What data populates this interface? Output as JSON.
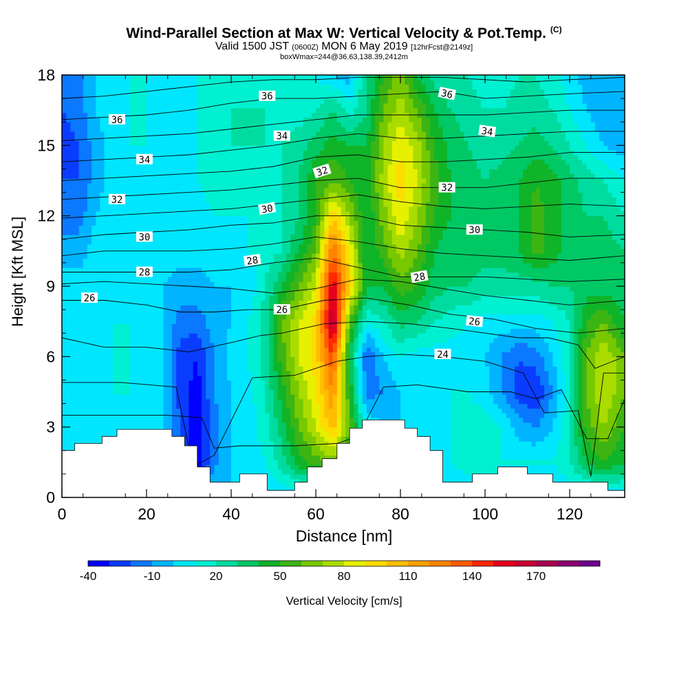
{
  "title": {
    "main": "Wind-Parallel Section at Max W: Vertical Velocity & Pot.Temp.",
    "tag": "(C)",
    "valid_pre": "Valid 1500 JST",
    "valid_utc": "(0600Z)",
    "valid_post": "MON 6 May 2019",
    "forecast": "[12hrFcst@2149z]",
    "box": "boxWmax=244@36.63,138.39,2412m"
  },
  "chart_data": {
    "type": "heatmap",
    "xlabel": "Distance [nm]",
    "ylabel": "Height [Kft MSL]",
    "xlim": [
      0,
      133
    ],
    "ylim": [
      0,
      18
    ],
    "x_ticks": [
      0,
      20,
      40,
      60,
      80,
      100,
      120
    ],
    "y_ticks": [
      0,
      3,
      6,
      9,
      12,
      15,
      18
    ],
    "colorbar": {
      "label": "Vertical Velocity [cm/s]",
      "tick_labels": [
        "-40",
        "-10",
        "20",
        "50",
        "80",
        "110",
        "140",
        "170"
      ],
      "levels": [
        -40,
        -30,
        -20,
        -10,
        0,
        10,
        20,
        30,
        40,
        50,
        60,
        70,
        80,
        90,
        100,
        110,
        120,
        130,
        140,
        150,
        160,
        170,
        180,
        190
      ],
      "colors": [
        "#0000ff",
        "#0a3cff",
        "#0a78ff",
        "#00b4ff",
        "#00e6ff",
        "#00f0d2",
        "#00dca0",
        "#00c864",
        "#10b428",
        "#3cb414",
        "#78c800",
        "#aadc00",
        "#e6f000",
        "#ffdc00",
        "#ffbe00",
        "#ffa000",
        "#ff8200",
        "#ff5a00",
        "#ff2800",
        "#e6001e",
        "#c80032",
        "#aa0050",
        "#8c006e",
        "#6e008c"
      ]
    },
    "w_grid": {
      "x": [
        0,
        4,
        8,
        12,
        16,
        20,
        24,
        28,
        32,
        36,
        40,
        44,
        48,
        52,
        56,
        60,
        64,
        68,
        72,
        76,
        80,
        84,
        88,
        92,
        96,
        100,
        104,
        108,
        112,
        116,
        120,
        124,
        128,
        133
      ],
      "y": [
        0,
        1.5,
        3,
        4.5,
        6,
        7.5,
        9,
        10.5,
        12,
        13.5,
        15,
        16.5,
        18
      ],
      "values": [
        [
          0,
          0,
          0,
          0,
          0,
          0,
          0,
          0,
          0,
          0,
          0,
          0,
          0,
          0,
          0,
          0,
          0,
          0,
          0,
          0,
          0,
          0,
          0,
          0,
          0,
          0,
          0,
          0,
          0,
          0,
          0,
          0,
          0,
          0
        ],
        [
          5,
          5,
          5,
          5,
          5,
          5,
          0,
          -15,
          -38,
          -12,
          0,
          5,
          10,
          25,
          45,
          55,
          65,
          40,
          0,
          0,
          0,
          0,
          5,
          10,
          15,
          20,
          10,
          10,
          10,
          10,
          20,
          40,
          50,
          40
        ],
        [
          8,
          5,
          5,
          5,
          5,
          5,
          0,
          -20,
          -38,
          -15,
          0,
          5,
          15,
          35,
          60,
          80,
          105,
          60,
          10,
          0,
          0,
          0,
          5,
          10,
          15,
          15,
          10,
          -5,
          -10,
          0,
          20,
          55,
          70,
          50
        ],
        [
          5,
          5,
          5,
          10,
          10,
          5,
          0,
          -25,
          -35,
          -10,
          0,
          5,
          20,
          45,
          70,
          90,
          120,
          50,
          -15,
          -10,
          0,
          0,
          5,
          10,
          10,
          5,
          -10,
          -25,
          -30,
          -10,
          15,
          60,
          80,
          60
        ],
        [
          5,
          5,
          10,
          10,
          10,
          5,
          0,
          -25,
          -30,
          -10,
          5,
          10,
          25,
          55,
          80,
          95,
          140,
          40,
          -20,
          0,
          10,
          5,
          5,
          5,
          5,
          0,
          -10,
          -20,
          -15,
          0,
          20,
          60,
          80,
          60
        ],
        [
          5,
          5,
          5,
          10,
          10,
          5,
          0,
          -15,
          -15,
          -5,
          0,
          10,
          25,
          60,
          80,
          95,
          175,
          60,
          10,
          20,
          35,
          30,
          20,
          15,
          10,
          5,
          5,
          5,
          5,
          10,
          20,
          50,
          60,
          40
        ],
        [
          5,
          5,
          5,
          5,
          5,
          5,
          0,
          -5,
          -5,
          0,
          0,
          0,
          20,
          40,
          60,
          80,
          160,
          100,
          40,
          40,
          55,
          50,
          35,
          30,
          30,
          25,
          25,
          25,
          25,
          30,
          30,
          35,
          35,
          30
        ],
        [
          -5,
          -5,
          5,
          5,
          5,
          5,
          5,
          5,
          5,
          5,
          5,
          10,
          15,
          20,
          40,
          60,
          130,
          90,
          40,
          55,
          75,
          60,
          40,
          30,
          35,
          35,
          35,
          40,
          55,
          45,
          35,
          35,
          35,
          30
        ],
        [
          -15,
          -15,
          0,
          5,
          5,
          5,
          5,
          5,
          5,
          10,
          10,
          10,
          15,
          20,
          30,
          50,
          100,
          70,
          40,
          65,
          90,
          70,
          50,
          40,
          35,
          35,
          35,
          40,
          55,
          45,
          35,
          30,
          30,
          20
        ],
        [
          -20,
          -20,
          -5,
          5,
          10,
          5,
          5,
          5,
          10,
          15,
          15,
          15,
          15,
          20,
          30,
          50,
          60,
          50,
          40,
          75,
          95,
          80,
          55,
          40,
          35,
          30,
          35,
          40,
          50,
          45,
          35,
          25,
          20,
          10
        ],
        [
          -25,
          -20,
          -5,
          5,
          10,
          10,
          5,
          5,
          10,
          15,
          20,
          20,
          20,
          20,
          25,
          35,
          45,
          40,
          40,
          70,
          90,
          75,
          50,
          35,
          30,
          25,
          25,
          30,
          35,
          30,
          20,
          10,
          0,
          -5
        ],
        [
          -20,
          -15,
          0,
          5,
          10,
          10,
          5,
          5,
          10,
          15,
          20,
          20,
          20,
          15,
          15,
          20,
          30,
          15,
          30,
          60,
          75,
          60,
          40,
          30,
          25,
          20,
          20,
          25,
          25,
          20,
          10,
          0,
          -10,
          -10
        ],
        [
          -20,
          -15,
          0,
          5,
          10,
          10,
          5,
          5,
          10,
          15,
          15,
          15,
          10,
          10,
          15,
          10,
          0,
          -5,
          30,
          50,
          65,
          40,
          25,
          20,
          20,
          15,
          15,
          20,
          20,
          15,
          5,
          -5,
          -10,
          -10
        ]
      ]
    },
    "terrain": {
      "x": [
        0,
        3,
        3,
        9.5,
        9.5,
        13,
        13,
        16.5,
        16.5,
        26,
        26,
        29,
        29,
        32,
        32,
        35,
        35,
        42,
        42,
        48.5,
        48.5,
        55,
        55,
        58,
        58,
        61.5,
        61.5,
        65,
        65,
        68,
        68,
        71,
        71,
        81,
        81,
        84,
        84,
        87,
        87,
        90,
        90,
        97,
        97,
        103,
        103,
        110,
        110,
        116,
        116,
        129,
        129,
        133
      ],
      "y": [
        2,
        2,
        2.3,
        2.3,
        2.6,
        2.6,
        2.9,
        2.9,
        2.9,
        2.9,
        2.6,
        2.6,
        2.2,
        2.2,
        1.3,
        1.3,
        0.65,
        0.65,
        1.0,
        1.0,
        0.3,
        0.3,
        0.65,
        0.65,
        1.3,
        1.3,
        1.65,
        1.65,
        2.3,
        2.3,
        2.95,
        2.95,
        3.3,
        3.3,
        2.95,
        2.95,
        2.6,
        2.6,
        2.0,
        2.0,
        0.65,
        0.65,
        1.0,
        1.0,
        1.3,
        1.3,
        1.0,
        1.0,
        0.65,
        0.65,
        0.3,
        0.3
      ]
    },
    "theta_lines": [
      {
        "level": 23,
        "x": [
          0,
          25,
          33,
          36,
          42,
          55,
          65,
          70,
          76,
          84,
          96,
          106,
          112,
          118,
          124,
          129,
          133
        ],
        "y": [
          3.5,
          3.5,
          3.4,
          2.1,
          2.2,
          2.2,
          2.3,
          2.6,
          4.7,
          4.8,
          4.5,
          4.5,
          4.2,
          4.6,
          2.5,
          2.5,
          4.2
        ]
      },
      {
        "level": 24,
        "x": [
          0,
          14,
          27,
          31,
          36,
          45,
          55,
          65,
          72,
          80,
          90,
          100,
          109,
          114,
          122,
          125,
          128,
          133
        ],
        "y": [
          4.9,
          4.9,
          4.7,
          1.3,
          1.8,
          5.1,
          5.2,
          5.8,
          6.0,
          6.1,
          6.0,
          5.8,
          5.3,
          3.6,
          3.7,
          0.9,
          5.3,
          5.3
        ]
      },
      {
        "level": 25,
        "x": [
          0,
          10,
          20,
          30,
          40,
          47,
          52,
          62,
          72,
          82,
          92,
          100,
          108,
          115,
          122,
          126,
          133
        ],
        "y": [
          6.8,
          6.4,
          6.4,
          6.2,
          6.6,
          6.9,
          7.0,
          7.4,
          7.5,
          7.4,
          7.2,
          7.0,
          6.8,
          6.8,
          6.5,
          5.5,
          6.0
        ]
      },
      {
        "level": 26,
        "x": [
          0,
          10,
          20,
          28,
          36,
          44,
          52,
          62,
          72,
          82,
          92,
          102,
          112,
          122,
          133
        ],
        "y": [
          8.4,
          8.4,
          8.2,
          7.9,
          7.9,
          8.0,
          8.0,
          8.4,
          8.5,
          8.2,
          7.8,
          7.6,
          7.2,
          7.0,
          7.2
        ]
      },
      {
        "level": 27,
        "x": [
          0,
          10,
          20,
          30,
          40,
          50,
          60,
          70,
          80,
          90,
          100,
          110,
          120,
          133
        ],
        "y": [
          9.1,
          9.2,
          9.1,
          9.0,
          8.9,
          8.7,
          8.9,
          9.3,
          9.2,
          8.9,
          8.6,
          8.4,
          8.2,
          8.4
        ]
      },
      {
        "level": 28,
        "x": [
          0,
          10,
          20,
          30,
          40,
          50,
          60,
          70,
          80,
          90,
          100,
          110,
          120,
          133
        ],
        "y": [
          9.6,
          9.6,
          9.6,
          9.6,
          9.7,
          10.0,
          10.2,
          9.8,
          9.4,
          9.4,
          9.4,
          9.3,
          9.2,
          9.3
        ]
      },
      {
        "level": 29,
        "x": [
          0,
          10,
          20,
          30,
          40,
          50,
          60,
          70,
          80,
          90,
          100,
          110,
          120,
          133
        ],
        "y": [
          10.3,
          10.5,
          10.5,
          10.5,
          10.6,
          10.8,
          11.1,
          10.9,
          10.6,
          10.4,
          10.3,
          10.2,
          10.1,
          10.3
        ]
      },
      {
        "level": 30,
        "x": [
          0,
          10,
          20,
          30,
          40,
          50,
          60,
          70,
          80,
          90,
          100,
          110,
          120,
          133
        ],
        "y": [
          11.0,
          11.2,
          11.3,
          11.4,
          11.6,
          11.7,
          12.0,
          12.0,
          11.6,
          11.5,
          11.4,
          11.3,
          11.1,
          11.2
        ]
      },
      {
        "level": 31,
        "x": [
          0,
          10,
          20,
          30,
          40,
          50,
          60,
          70,
          80,
          90,
          100,
          110,
          120,
          133
        ],
        "y": [
          11.9,
          12.0,
          12.1,
          12.2,
          12.3,
          12.5,
          12.7,
          12.9,
          12.6,
          12.4,
          12.3,
          12.4,
          12.5,
          12.4
        ]
      },
      {
        "level": 32,
        "x": [
          0,
          10,
          20,
          30,
          40,
          50,
          60,
          70,
          80,
          90,
          100,
          110,
          120,
          133
        ],
        "y": [
          12.7,
          12.8,
          12.9,
          13.0,
          13.1,
          13.3,
          13.5,
          13.6,
          13.2,
          13.2,
          13.2,
          13.4,
          13.6,
          13.6
        ]
      },
      {
        "level": 33,
        "x": [
          0,
          10,
          20,
          30,
          40,
          50,
          60,
          70,
          80,
          90,
          100,
          110,
          120,
          133
        ],
        "y": [
          13.5,
          13.6,
          13.7,
          13.8,
          13.9,
          14.1,
          14.5,
          14.6,
          14.3,
          14.3,
          14.4,
          14.5,
          14.7,
          14.7
        ]
      },
      {
        "level": 34,
        "x": [
          0,
          10,
          20,
          30,
          40,
          50,
          60,
          70,
          80,
          90,
          100,
          110,
          120,
          133
        ],
        "y": [
          14.3,
          14.4,
          14.5,
          14.6,
          14.8,
          15.0,
          15.3,
          15.5,
          15.3,
          15.3,
          15.4,
          15.5,
          15.6,
          15.6
        ]
      },
      {
        "level": 35,
        "x": [
          0,
          10,
          20,
          30,
          40,
          50,
          60,
          70,
          80,
          90,
          100,
          110,
          120,
          133
        ],
        "y": [
          15.2,
          15.3,
          15.4,
          15.5,
          15.7,
          15.9,
          16.1,
          16.3,
          16.3,
          16.3,
          16.3,
          16.4,
          16.5,
          16.5
        ]
      },
      {
        "level": 36,
        "x": [
          0,
          10,
          20,
          30,
          40,
          50,
          60,
          70,
          80,
          90,
          100,
          110,
          120,
          133
        ],
        "y": [
          16.1,
          16.2,
          16.3,
          16.5,
          16.8,
          17.0,
          17.0,
          17.1,
          17.2,
          17.3,
          17.0,
          17.1,
          17.2,
          17.3
        ]
      },
      {
        "level": 37,
        "x": [
          0,
          10,
          20,
          30,
          40,
          50,
          60,
          70,
          80,
          90,
          100,
          110,
          120,
          133
        ],
        "y": [
          17.0,
          17.1,
          17.3,
          17.5,
          17.7,
          17.8,
          17.8,
          17.9,
          17.9,
          17.9,
          17.8,
          17.7,
          17.8,
          17.9
        ]
      }
    ],
    "contour_labels": [
      {
        "text": "36",
        "x": 48.5,
        "y": 17.1
      },
      {
        "text": "36",
        "x": 13,
        "y": 16.1
      },
      {
        "text": "36",
        "x": 91,
        "y": 17.2,
        "rot": 12
      },
      {
        "text": "34",
        "x": 52,
        "y": 15.4
      },
      {
        "text": "34",
        "x": 19.5,
        "y": 14.4
      },
      {
        "text": "34",
        "x": 100.5,
        "y": 15.6,
        "rot": 8
      },
      {
        "text": "32",
        "x": 61.5,
        "y": 13.9,
        "rot": -18
      },
      {
        "text": "32",
        "x": 13,
        "y": 12.7
      },
      {
        "text": "32",
        "x": 91,
        "y": 13.2
      },
      {
        "text": "30",
        "x": 48.5,
        "y": 12.3,
        "rot": -10
      },
      {
        "text": "30",
        "x": 19.5,
        "y": 11.1
      },
      {
        "text": "30",
        "x": 97.5,
        "y": 11.4
      },
      {
        "text": "28",
        "x": 45,
        "y": 10.1,
        "rot": -8
      },
      {
        "text": "28",
        "x": 19.5,
        "y": 9.6
      },
      {
        "text": "28",
        "x": 84.5,
        "y": 9.4,
        "rot": -10
      },
      {
        "text": "26",
        "x": 6.5,
        "y": 8.5
      },
      {
        "text": "26",
        "x": 52,
        "y": 8.0
      },
      {
        "text": "26",
        "x": 97.5,
        "y": 7.5,
        "rot": 6
      },
      {
        "text": "24",
        "x": 90,
        "y": 6.1
      }
    ]
  }
}
